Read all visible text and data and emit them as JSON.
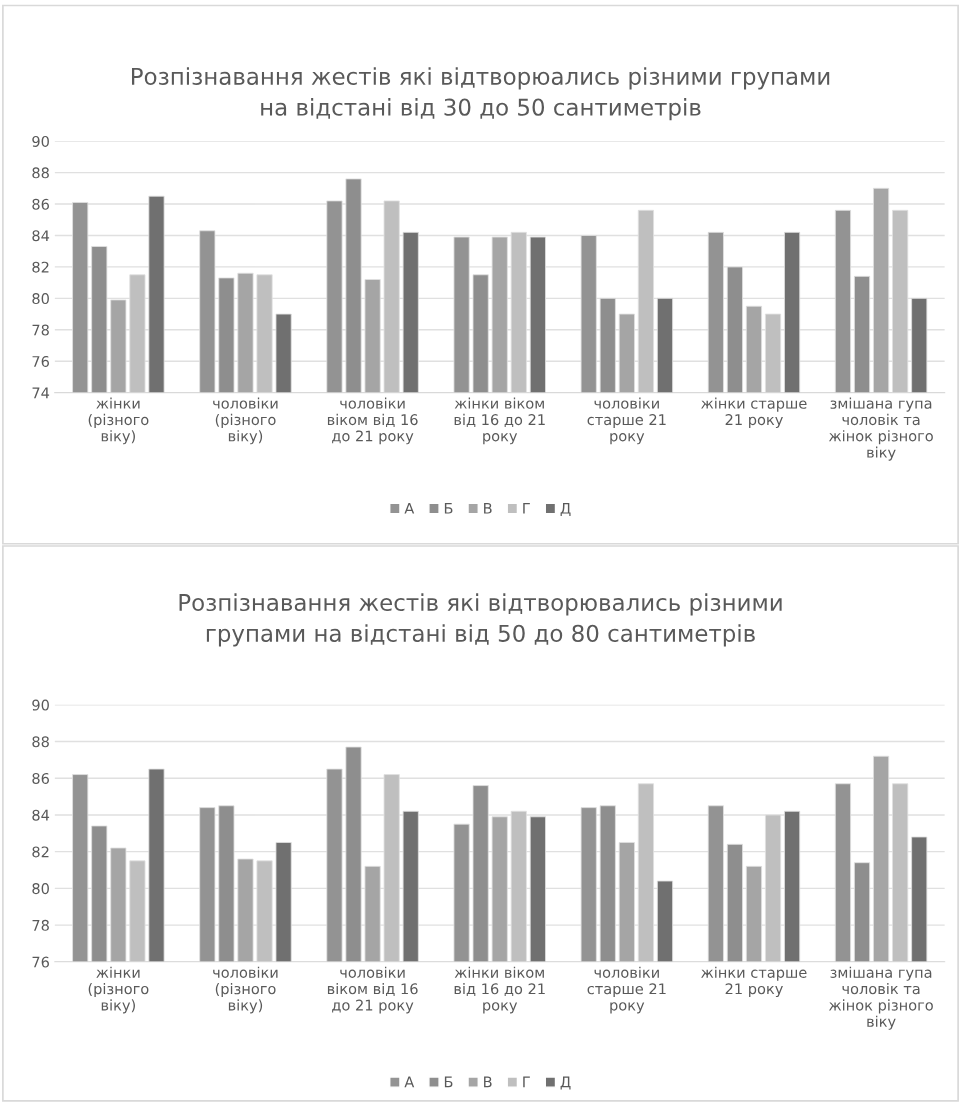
{
  "chart_data": [
    {
      "type": "bar",
      "title": "Розпізнавання жестів які відтворюались різними групами\nна відстані від 30 до 50 сантиметрів",
      "categories": [
        "жінки (різного віку)",
        "чоловіки (різного віку)",
        "чоловіки віком від 16 до 21 року",
        "жінки віком від 16 до 21 року",
        "чоловіки старше 21 року",
        "жінки старше 21 року",
        "змішана гупа чоловік та жінок різного віку"
      ],
      "series": [
        {
          "name": "А",
          "color": "#939393",
          "values": [
            86.1,
            84.3,
            86.2,
            83.9,
            84.0,
            84.2,
            85.6
          ]
        },
        {
          "name": "Б",
          "color": "#8e8e8e",
          "values": [
            83.3,
            81.3,
            87.6,
            81.5,
            80.0,
            82.0,
            81.4
          ]
        },
        {
          "name": "В",
          "color": "#a5a5a5",
          "values": [
            79.9,
            81.6,
            81.2,
            83.9,
            79.0,
            79.5,
            87.0
          ]
        },
        {
          "name": "Г",
          "color": "#bfbfbf",
          "values": [
            81.5,
            81.5,
            86.2,
            84.2,
            85.6,
            79.0,
            85.6
          ]
        },
        {
          "name": "Д",
          "color": "#707070",
          "values": [
            86.5,
            79.0,
            84.2,
            83.9,
            80.0,
            84.2,
            80.0
          ]
        }
      ],
      "ylim": [
        74,
        90
      ],
      "yticks": [
        74,
        76,
        78,
        80,
        82,
        84,
        86,
        88,
        90
      ],
      "grid": "y",
      "legend": "bottom"
    },
    {
      "type": "bar",
      "title": "Розпізнавання жестів які відтворювались різними\nгрупами на відстані від 50 до 80 сантиметрів",
      "categories": [
        "жінки (різного віку)",
        "чоловіки (різного віку)",
        "чоловіки віком від 16 до 21 року",
        "жінки віком від 16 до 21 року",
        "чоловіки старше 21 року",
        "жінки старше 21 року",
        "змішана гупа чоловік та жінок різного віку"
      ],
      "series": [
        {
          "name": "А",
          "color": "#939393",
          "values": [
            86.2,
            84.4,
            86.5,
            83.5,
            84.4,
            84.5,
            85.7
          ]
        },
        {
          "name": "Б",
          "color": "#8e8e8e",
          "values": [
            83.4,
            84.5,
            87.7,
            85.6,
            84.5,
            82.4,
            81.4
          ]
        },
        {
          "name": "В",
          "color": "#a5a5a5",
          "values": [
            82.2,
            81.6,
            81.2,
            83.9,
            82.5,
            81.2,
            87.2
          ]
        },
        {
          "name": "Г",
          "color": "#bfbfbf",
          "values": [
            81.5,
            81.5,
            86.2,
            84.2,
            85.7,
            84.0,
            85.7
          ]
        },
        {
          "name": "Д",
          "color": "#707070",
          "values": [
            86.5,
            82.5,
            84.2,
            83.9,
            80.4,
            84.2,
            82.8
          ]
        }
      ],
      "ylim": [
        76,
        90
      ],
      "yticks": [
        76,
        78,
        80,
        82,
        84,
        86,
        88,
        90
      ],
      "grid": "y",
      "legend": "bottom"
    }
  ]
}
